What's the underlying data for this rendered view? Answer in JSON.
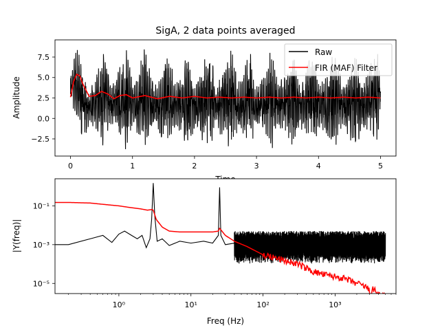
{
  "chart_data": [
    {
      "type": "line",
      "title": "SigA, 2 data points averaged",
      "xlabel": "Time",
      "ylabel": "Amplitude",
      "xlim": [
        -0.25,
        5.25
      ],
      "ylim": [
        -4.6,
        9.6
      ],
      "xticks": [
        0,
        1,
        2,
        3,
        4,
        5
      ],
      "xtick_labels": [
        "0",
        "1",
        "2",
        "3",
        "4",
        "5"
      ],
      "yticks": [
        -2.5,
        0.0,
        2.5,
        5.0,
        7.5
      ],
      "ytick_labels": [
        "−2.5",
        "0.0",
        "2.5",
        "5.0",
        "7.5"
      ],
      "legend": {
        "position": "top-right",
        "entries": [
          "Raw",
          "FIR (MAF) Filter"
        ]
      },
      "colors": {
        "raw": "#000000",
        "filtered": "#ff0000"
      },
      "series": [
        {
          "name": "Raw",
          "envelope": {
            "t": [
              0.0,
              0.1,
              0.2,
              0.3,
              0.45,
              0.55,
              0.65,
              0.8,
              0.9,
              1.0,
              1.1,
              1.2,
              1.35,
              1.45,
              1.55,
              1.7,
              1.8,
              1.9,
              2.0,
              2.1,
              2.25,
              2.35,
              2.45,
              2.6,
              2.7,
              2.8,
              2.9,
              3.0,
              3.15,
              3.25,
              3.35,
              3.5,
              3.6,
              3.7,
              3.8,
              3.9,
              4.05,
              4.15,
              4.25,
              4.4,
              4.5,
              4.6,
              4.7,
              4.8,
              4.95,
              5.0
            ],
            "upper": [
              5.5,
              9.0,
              7.5,
              3.0,
              6.5,
              9.0,
              4.5,
              6.5,
              9.0,
              5.0,
              6.0,
              9.0,
              4.0,
              5.5,
              9.0,
              4.5,
              6.0,
              9.0,
              4.0,
              6.0,
              9.0,
              4.0,
              6.0,
              9.0,
              4.5,
              6.0,
              9.0,
              4.0,
              6.5,
              9.0,
              4.5,
              6.0,
              9.0,
              4.0,
              6.5,
              9.0,
              4.5,
              6.0,
              9.0,
              4.0,
              6.5,
              9.0,
              4.5,
              6.0,
              9.0,
              4.5
            ],
            "lower": [
              2.0,
              -0.5,
              -3.5,
              -1.0,
              -2.0,
              -4.0,
              -1.0,
              -2.5,
              -4.0,
              -1.5,
              -2.5,
              -4.0,
              -1.0,
              -2.5,
              -4.0,
              -1.0,
              -2.5,
              -4.0,
              -1.5,
              -2.5,
              -4.0,
              -1.0,
              -2.5,
              -4.0,
              -1.5,
              -2.5,
              -4.0,
              -1.0,
              -2.5,
              -4.0,
              -1.5,
              -2.5,
              -4.0,
              -1.0,
              -2.5,
              -4.0,
              -1.5,
              -2.5,
              -4.0,
              -1.0,
              -2.5,
              -4.0,
              -1.5,
              -2.5,
              -4.0,
              2.0
            ]
          }
        },
        {
          "name": "FIR (MAF) Filter",
          "t": [
            0.0,
            0.05,
            0.1,
            0.15,
            0.2,
            0.3,
            0.4,
            0.5,
            0.6,
            0.7,
            0.8,
            0.9,
            1.0,
            1.2,
            1.4,
            1.6,
            1.8,
            2.0,
            2.2,
            2.4,
            2.6,
            2.8,
            3.0,
            3.2,
            3.4,
            3.6,
            3.8,
            4.0,
            4.2,
            4.4,
            4.6,
            4.8,
            5.0
          ],
          "values": [
            2.6,
            4.5,
            5.4,
            5.2,
            4.2,
            2.7,
            2.8,
            3.3,
            3.0,
            2.4,
            2.8,
            2.9,
            2.5,
            2.8,
            2.4,
            2.7,
            2.5,
            2.7,
            2.5,
            2.6,
            2.5,
            2.6,
            2.5,
            2.6,
            2.5,
            2.6,
            2.5,
            2.6,
            2.5,
            2.6,
            2.5,
            2.6,
            2.5
          ]
        }
      ]
    },
    {
      "type": "line",
      "title": "",
      "xlabel": "Freq (Hz)",
      "ylabel": "|Y(freq)|",
      "xscale": "log",
      "yscale": "log",
      "xlim": [
        0.13,
        7000
      ],
      "ylim": [
        3e-06,
        2.5
      ],
      "xticks": [
        1,
        10,
        100,
        1000
      ],
      "xtick_labels": [
        "10⁰",
        "10¹",
        "10²",
        "10³"
      ],
      "yticks": [
        1e-05,
        0.001,
        0.1
      ],
      "ytick_labels": [
        "10⁻⁵",
        "10⁻³",
        "10⁻¹"
      ],
      "colors": {
        "raw": "#000000",
        "filtered": "#ff0000"
      },
      "series": [
        {
          "name": "Raw",
          "freq": [
            0.13,
            0.2,
            0.4,
            0.6,
            0.8,
            1.0,
            1.2,
            1.5,
            1.8,
            2.1,
            2.4,
            2.7,
            2.85,
            3.0,
            3.15,
            3.4,
            4.0,
            5.0,
            7.0,
            10.0,
            15.0,
            20.0,
            24.0,
            25.0,
            26.0,
            30.0,
            40.0
          ],
          "values": [
            0.001,
            0.001,
            0.002,
            0.003,
            0.0013,
            0.0035,
            0.005,
            0.003,
            0.002,
            0.003,
            0.0007,
            0.002,
            0.02,
            1.5,
            0.03,
            0.0015,
            0.002,
            0.0009,
            0.0015,
            0.0012,
            0.0015,
            0.0012,
            0.003,
            0.9,
            0.003,
            0.001,
            0.0012
          ],
          "noise_band": {
            "freq_from": 40,
            "freq_to": 5000,
            "upper": 0.005,
            "lower": 0.0001
          }
        },
        {
          "name": "FIR (MAF) Filter",
          "freq": [
            0.13,
            0.2,
            0.4,
            0.6,
            1.0,
            1.5,
            2.0,
            2.5,
            2.9,
            3.0,
            3.3,
            4.0,
            5.0,
            7.0,
            10.0,
            15.0,
            20.0,
            24.0,
            25.0,
            30.0,
            40.0,
            60.0,
            100.0,
            150.0,
            200.0,
            300.0,
            500.0,
            800.0,
            1200.0,
            2000.0,
            2800.0,
            3100.0,
            3300.0,
            4000.0,
            5000.0
          ],
          "values": [
            0.15,
            0.15,
            0.14,
            0.12,
            0.1,
            0.08,
            0.07,
            0.06,
            0.065,
            0.06,
            0.02,
            0.008,
            0.005,
            0.0045,
            0.0045,
            0.0045,
            0.0045,
            0.005,
            0.007,
            0.003,
            0.0015,
            0.0008,
            0.0003,
            0.0002,
            0.00015,
            0.0001,
            4e-05,
            2.5e-05,
            2e-05,
            1e-05,
            6e-06,
            3e-06,
            5e-06,
            3e-06,
            2e-06
          ]
        }
      ]
    }
  ]
}
